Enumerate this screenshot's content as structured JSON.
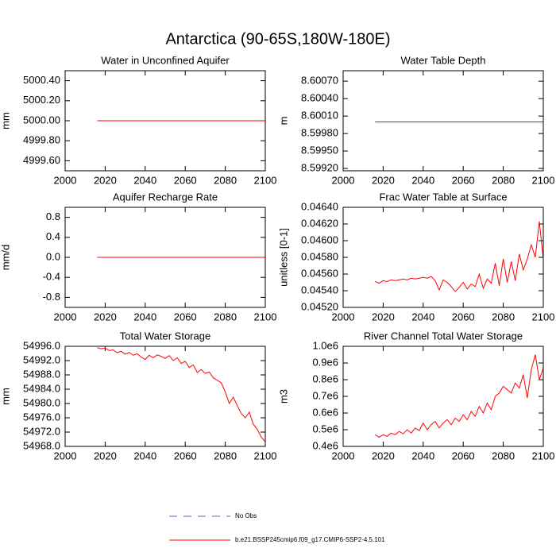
{
  "title": "Antarctica (90-65S,180W-180E)",
  "legend": [
    {
      "name": "No Obs",
      "color": "#6a5acd",
      "dash": true
    },
    {
      "name": "b.e21.BSSP245cmip6.f09_g17.CMIP6-SSP2-4.5.101",
      "color": "#ff0000",
      "dash": false
    }
  ],
  "chart_data": [
    {
      "type": "line",
      "title": "Water in Unconfined Aquifer",
      "y_label": "mm",
      "color": "#ff0000",
      "x": [
        2016,
        2018,
        2020,
        2022,
        2024,
        2026,
        2028,
        2030,
        2032,
        2034,
        2036,
        2038,
        2040,
        2042,
        2044,
        2046,
        2048,
        2050,
        2052,
        2054,
        2056,
        2058,
        2060,
        2062,
        2064,
        2066,
        2068,
        2070,
        2072,
        2074,
        2076,
        2078,
        2080,
        2082,
        2084,
        2086,
        2088,
        2090,
        2092,
        2094,
        2096,
        2098,
        2100
      ],
      "values": [
        5000,
        5000,
        5000,
        5000,
        5000,
        5000,
        5000,
        5000,
        5000,
        5000,
        5000,
        5000,
        5000,
        5000,
        5000,
        5000,
        5000,
        5000,
        5000,
        5000,
        5000,
        5000,
        5000,
        5000,
        5000,
        5000,
        5000,
        5000,
        5000,
        5000,
        5000,
        5000,
        5000,
        5000,
        5000,
        5000,
        5000,
        5000,
        5000,
        5000,
        5000,
        5000,
        5000
      ],
      "xlim": [
        2000,
        2100
      ],
      "xticks": [
        2000,
        2020,
        2040,
        2060,
        2080,
        2100
      ],
      "ylim": [
        4999.5,
        5000.5
      ],
      "yticks": [
        {
          "value": 4999.6,
          "label": "4999.60"
        },
        {
          "value": 4999.8,
          "label": "4999.80"
        },
        {
          "value": 5000,
          "label": "5000.00"
        },
        {
          "value": 5000.2,
          "label": "5000.20"
        },
        {
          "value": 5000.4,
          "label": "5000.40"
        }
      ]
    },
    {
      "type": "line",
      "title": "Water Table Depth",
      "y_label": "m",
      "color": "#ff0000",
      "x": [
        2016,
        2018,
        2020,
        2022,
        2024,
        2026,
        2028,
        2030,
        2032,
        2034,
        2036,
        2038,
        2040,
        2042,
        2044,
        2046,
        2048,
        2050,
        2052,
        2054,
        2056,
        2058,
        2060,
        2062,
        2064,
        2066,
        2068,
        2070,
        2072,
        2074,
        2076,
        2078,
        2080,
        2082,
        2084,
        2086,
        2088,
        2090,
        2092,
        2094,
        2096,
        2098,
        2100
      ],
      "values": [
        8.6,
        8.6,
        8.6,
        8.6,
        8.6,
        8.6,
        8.6,
        8.6,
        8.6,
        8.6,
        8.6,
        8.6,
        8.6,
        8.6,
        8.6,
        8.6,
        8.6,
        8.6,
        8.6,
        8.6,
        8.6,
        8.6,
        8.6,
        8.6,
        8.6,
        8.6,
        8.6,
        8.6,
        8.6,
        8.6,
        8.6,
        8.6,
        8.6,
        8.6,
        8.6,
        8.6,
        8.6,
        8.6,
        8.6,
        8.6,
        8.6,
        8.6,
        8.6
      ],
      "xlim": [
        2000,
        2100
      ],
      "xticks": [
        2000,
        2020,
        2040,
        2060,
        2080,
        2100
      ],
      "ylim": [
        8.59916,
        8.60088
      ],
      "yticks": [
        {
          "value": 8.5992,
          "label": "8.59920"
        },
        {
          "value": 8.5995,
          "label": "8.59950"
        },
        {
          "value": 8.5998,
          "label": "8.59980"
        },
        {
          "value": 8.6001,
          "label": "8.60010"
        },
        {
          "value": 8.6004,
          "label": "8.60040"
        },
        {
          "value": 8.6007,
          "label": "8.60070"
        }
      ]
    },
    {
      "type": "line",
      "title": "Aquifer Recharge Rate",
      "y_label": "mm/d",
      "color": "#ff0000",
      "x": [
        2016,
        2018,
        2020,
        2022,
        2024,
        2026,
        2028,
        2030,
        2032,
        2034,
        2036,
        2038,
        2040,
        2042,
        2044,
        2046,
        2048,
        2050,
        2052,
        2054,
        2056,
        2058,
        2060,
        2062,
        2064,
        2066,
        2068,
        2070,
        2072,
        2074,
        2076,
        2078,
        2080,
        2082,
        2084,
        2086,
        2088,
        2090,
        2092,
        2094,
        2096,
        2098,
        2100
      ],
      "values": [
        0,
        0,
        0,
        0,
        0,
        0,
        0,
        0,
        0,
        0,
        0,
        0,
        0,
        0,
        0,
        0,
        0,
        0,
        0,
        0,
        0,
        0,
        0,
        0,
        0,
        0,
        0,
        0,
        0,
        0,
        0,
        0,
        0,
        0,
        0,
        0,
        0,
        0,
        0,
        0,
        0,
        0,
        0
      ],
      "xlim": [
        2000,
        2100
      ],
      "xticks": [
        2000,
        2020,
        2040,
        2060,
        2080,
        2100
      ],
      "ylim": [
        -1,
        1
      ],
      "yticks": [
        -0.8,
        -0.4,
        {
          "value": 0,
          "label": "0.0"
        },
        0.4,
        0.8
      ]
    },
    {
      "type": "line",
      "title": "Frac Water Table at Surface",
      "y_label": "unitless [0-1]",
      "color": "#ff0000",
      "x": [
        2016,
        2018,
        2020,
        2022,
        2024,
        2026,
        2028,
        2030,
        2032,
        2034,
        2036,
        2038,
        2040,
        2042,
        2044,
        2046,
        2048,
        2050,
        2052,
        2054,
        2056,
        2058,
        2060,
        2062,
        2064,
        2066,
        2068,
        2070,
        2072,
        2074,
        2076,
        2078,
        2080,
        2082,
        2084,
        2086,
        2088,
        2090,
        2092,
        2094,
        2096,
        2098,
        2100
      ],
      "values": [
        0.04551,
        0.04549,
        0.04552,
        0.04551,
        0.04553,
        0.04552,
        0.04553,
        0.04554,
        0.04553,
        0.04555,
        0.04554,
        0.04555,
        0.04556,
        0.04555,
        0.04557,
        0.04552,
        0.04541,
        0.04553,
        0.0455,
        0.04545,
        0.04539,
        0.04544,
        0.0455,
        0.04542,
        0.04548,
        0.04545,
        0.0456,
        0.04543,
        0.04554,
        0.04549,
        0.04573,
        0.04546,
        0.04578,
        0.0455,
        0.04575,
        0.04552,
        0.04584,
        0.04565,
        0.04578,
        0.04595,
        0.0458,
        0.04623,
        0.04578
      ],
      "xlim": [
        2000,
        2100
      ],
      "xticks": [
        2000,
        2020,
        2040,
        2060,
        2080,
        2100
      ],
      "ylim": [
        0.0452,
        0.0464
      ],
      "yticks": [
        {
          "value": 0.0452,
          "label": "0.04520"
        },
        {
          "value": 0.0454,
          "label": "0.04540"
        },
        {
          "value": 0.0456,
          "label": "0.04560"
        },
        {
          "value": 0.0458,
          "label": "0.04580"
        },
        {
          "value": 0.046,
          "label": "0.04600"
        },
        {
          "value": 0.0462,
          "label": "0.04620"
        },
        {
          "value": 0.0464,
          "label": "0.04640"
        }
      ]
    },
    {
      "type": "line",
      "title": "Total Water Storage",
      "y_label": "mm",
      "color": "#ff0000",
      "x": [
        2016,
        2018,
        2020,
        2022,
        2024,
        2026,
        2028,
        2030,
        2032,
        2034,
        2036,
        2038,
        2040,
        2042,
        2044,
        2046,
        2048,
        2050,
        2052,
        2054,
        2056,
        2058,
        2060,
        2062,
        2064,
        2066,
        2068,
        2070,
        2072,
        2074,
        2076,
        2078,
        2080,
        2082,
        2084,
        2086,
        2088,
        2090,
        2092,
        2094,
        2096,
        2098,
        2100
      ],
      "values": [
        54995.6,
        54995.3,
        54995.5,
        54994.8,
        54995.0,
        54994.2,
        54994.6,
        54993.8,
        54994.3,
        54993.5,
        54993.9,
        54993.0,
        54992.3,
        54993.5,
        54992.8,
        54993.6,
        54993.2,
        54992.6,
        54993.4,
        54992.0,
        54992.8,
        54991.2,
        54991.8,
        54990.1,
        54990.8,
        54988.7,
        54989.5,
        54988.4,
        54988.8,
        54987.2,
        54986.5,
        54985.8,
        54983.2,
        54980.0,
        54981.8,
        54979.4,
        54977.2,
        54976.0,
        54977.6,
        54974.2,
        54972.8,
        54970.6,
        54969.3
      ],
      "xlim": [
        2000,
        2100
      ],
      "xticks": [
        2000,
        2020,
        2040,
        2060,
        2080,
        2100
      ],
      "ylim": [
        54968,
        54996
      ],
      "yticks": [
        {
          "value": 54968,
          "label": "54968.0"
        },
        {
          "value": 54972,
          "label": "54972.0"
        },
        {
          "value": 54976,
          "label": "54976.0"
        },
        {
          "value": 54980,
          "label": "54980.0"
        },
        {
          "value": 54984,
          "label": "54984.0"
        },
        {
          "value": 54988,
          "label": "54988.0"
        },
        {
          "value": 54992,
          "label": "54992.0"
        },
        {
          "value": 54996,
          "label": "54996.0"
        }
      ]
    },
    {
      "type": "line",
      "title": "River Channel Total Water Storage",
      "y_label": "m3",
      "color": "#ff0000",
      "x": [
        2016,
        2018,
        2020,
        2022,
        2024,
        2026,
        2028,
        2030,
        2032,
        2034,
        2036,
        2038,
        2040,
        2042,
        2044,
        2046,
        2048,
        2050,
        2052,
        2054,
        2056,
        2058,
        2060,
        2062,
        2064,
        2066,
        2068,
        2070,
        2072,
        2074,
        2076,
        2078,
        2080,
        2082,
        2084,
        2086,
        2088,
        2090,
        2092,
        2094,
        2096,
        2098,
        2100
      ],
      "values": [
        470000,
        455000,
        470000,
        460000,
        480000,
        470000,
        490000,
        475000,
        500000,
        480000,
        510000,
        495000,
        540000,
        500000,
        530000,
        550000,
        510000,
        540000,
        560000,
        530000,
        570000,
        550000,
        590000,
        560000,
        610000,
        580000,
        640000,
        600000,
        660000,
        620000,
        700000,
        720000,
        760000,
        740000,
        720000,
        780000,
        750000,
        830000,
        690000,
        860000,
        950000,
        800000,
        870000
      ],
      "xlim": [
        2000,
        2100
      ],
      "xticks": [
        2000,
        2020,
        2040,
        2060,
        2080,
        2100
      ],
      "ylim": [
        400000,
        1000000
      ],
      "yticks": [
        {
          "value": 400000,
          "label": "0.4e6"
        },
        {
          "value": 500000,
          "label": "0.5e6"
        },
        {
          "value": 600000,
          "label": "0.6e6"
        },
        {
          "value": 700000,
          "label": "0.7e6"
        },
        {
          "value": 800000,
          "label": "0.8e6"
        },
        {
          "value": 900000,
          "label": "0.9e6"
        },
        {
          "value": 1000000,
          "label": "1.0e6"
        }
      ]
    }
  ]
}
